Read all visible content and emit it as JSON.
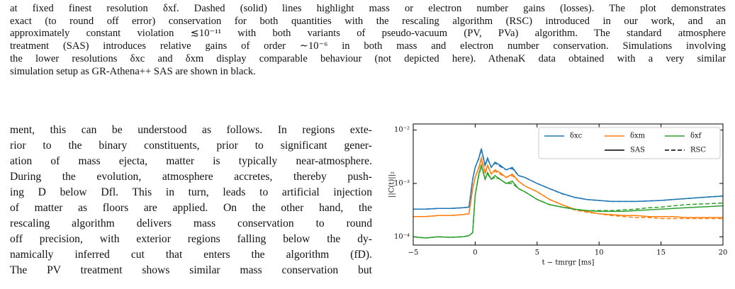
{
  "caption_lines": [
    "at fixed finest resolution δxf. Dashed (solid) lines highlight mass or electron number gains (losses). The plot demonstrates",
    "exact (to round off error) conservation for both quantities with the rescaling algorithm (RSC) introduced in our work, and an",
    "approximately constant violation ≲10⁻¹¹ with both variants of pseudo-vacuum (PV, PVa) algorithm. The standard atmosphere",
    "treatment (SAS) introduces relative gains of order ∼10⁻⁶ in both mass and electron number conservation. Simulations involving",
    "the lower resolutions δxc and δxm display comparable behaviour (not depicted here). AthenaK data obtained with a very similar",
    "simulation setup as GR-Athena++ SAS are shown in black."
  ],
  "body_lines": [
    "ment, this can be understood as follows. In regions exte-",
    "rior to the binary constituents, prior to significant gener-",
    "ation of mass ejecta, matter is typically near-atmosphere.",
    "During the evolution, atmosphere accretes, thereby push-",
    "ing D below Dfl. This in turn, leads to artificial injection",
    "of matter as floors are applied. On the other hand, the",
    "rescaling algorithm delivers mass conservation to round",
    "off precision, with exterior regions falling below the dy-",
    "namically inferred cut that enters the algorithm (fD).",
    "The PV treatment shows similar mass conservation but"
  ],
  "chart_data": {
    "type": "line",
    "y_label": "||C(t)||₂",
    "x_label": "t − tmrgr [ms]",
    "log_y": true,
    "ylim": [
      7e-05,
      0.013
    ],
    "xlim": [
      -5,
      20
    ],
    "yticks": [
      {
        "value": 0.0001,
        "label": "10⁻⁴"
      },
      {
        "value": 0.001,
        "label": "10⁻³"
      },
      {
        "value": 0.01,
        "label": "10⁻²"
      }
    ],
    "xticks": [
      {
        "value": -5,
        "label": "−5"
      },
      0,
      5,
      10,
      15,
      20
    ],
    "legend": "upper right",
    "line_styles": [
      {
        "name": "SAS",
        "dash": "solid"
      },
      {
        "name": "RSC",
        "dash": "dashed"
      }
    ],
    "x": [
      -5,
      -4,
      -3,
      -2,
      -1,
      -0.5,
      -0.2,
      0,
      0.3,
      0.5,
      0.8,
      1,
      1.3,
      1.6,
      2,
      2.5,
      3,
      3.5,
      4,
      5,
      6,
      7,
      8,
      9,
      10,
      11,
      12,
      13,
      14,
      15,
      16,
      17,
      18,
      19,
      20
    ],
    "series": [
      {
        "name": "δxc",
        "color": "#1f77b4",
        "lines": [
          [
            0.00033,
            0.00033,
            0.00034,
            0.00034,
            0.00035,
            0.00036,
            0.0012,
            0.002,
            0.003,
            0.0045,
            0.0022,
            0.003,
            0.002,
            0.0025,
            0.0022,
            0.0018,
            0.002,
            0.0014,
            0.0013,
            0.001,
            0.0008,
            0.00065,
            0.00055,
            0.0005,
            0.00048,
            0.00046,
            0.00046,
            0.00046,
            0.00047,
            0.00048,
            0.0005,
            0.00052,
            0.00054,
            0.00056,
            0.00058
          ],
          [
            0.00033,
            0.00033,
            0.00034,
            0.00034,
            0.00035,
            0.00036,
            0.0012,
            0.002,
            0.0029,
            0.0043,
            0.0021,
            0.0029,
            0.002,
            0.0024,
            0.0021,
            0.0018,
            0.0019,
            0.0014,
            0.0013,
            0.001,
            0.0008,
            0.00064,
            0.00055,
            0.0005,
            0.00048,
            0.00046,
            0.00046,
            0.00046,
            0.00047,
            0.00048,
            0.0005,
            0.00052,
            0.00054,
            0.00056,
            0.00058
          ]
        ]
      },
      {
        "name": "δxm",
        "color": "#ff7f0e",
        "lines": [
          [
            0.00024,
            0.00024,
            0.00025,
            0.00025,
            0.00026,
            0.00027,
            0.0008,
            0.0013,
            0.002,
            0.003,
            0.0016,
            0.0022,
            0.0015,
            0.0018,
            0.0016,
            0.0013,
            0.0015,
            0.0011,
            0.0009,
            0.0007,
            0.0005,
            0.0004,
            0.00033,
            0.0003,
            0.00027,
            0.00026,
            0.00025,
            0.00025,
            0.00024,
            0.00024,
            0.00024,
            0.00023,
            0.00023,
            0.00023,
            0.00023
          ],
          [
            0.00024,
            0.00024,
            0.00025,
            0.00025,
            0.00026,
            0.00027,
            0.0008,
            0.0013,
            0.0019,
            0.0028,
            0.0015,
            0.0021,
            0.0015,
            0.0017,
            0.0015,
            0.0013,
            0.0014,
            0.0011,
            0.0009,
            0.0007,
            0.0005,
            0.0004,
            0.00032,
            0.00029,
            0.00027,
            0.00025,
            0.00024,
            0.00023,
            0.00023,
            0.00022,
            0.00022,
            0.00022,
            0.00022,
            0.00022,
            0.00022
          ]
        ]
      },
      {
        "name": "δxf",
        "color": "#2ca02c",
        "lines": [
          [
            0.0001,
            9.5e-05,
            0.0001,
            9.8e-05,
            0.0001,
            0.000105,
            0.00012,
            0.0006,
            0.0015,
            0.0022,
            0.0012,
            0.0016,
            0.0012,
            0.0014,
            0.0012,
            0.001,
            0.0011,
            0.0008,
            0.0007,
            0.0005,
            0.0004,
            0.00036,
            0.00033,
            0.00031,
            0.0003,
            0.0003,
            0.0003,
            0.00031,
            0.00032,
            0.00033,
            0.00034,
            0.00035,
            0.00036,
            0.00037,
            0.00038
          ],
          [
            0.0001,
            9.5e-05,
            0.0001,
            9.8e-05,
            0.0001,
            0.000105,
            0.00012,
            0.0006,
            0.0014,
            0.0021,
            0.0012,
            0.0015,
            0.0012,
            0.0013,
            0.0012,
            0.001,
            0.001,
            0.0008,
            0.0007,
            0.0005,
            0.0004,
            0.00036,
            0.00033,
            0.00031,
            0.00031,
            0.00031,
            0.00032,
            0.00033,
            0.00035,
            0.00036,
            0.00038,
            0.0004,
            0.00041,
            0.00042,
            0.00043
          ]
        ]
      }
    ]
  }
}
